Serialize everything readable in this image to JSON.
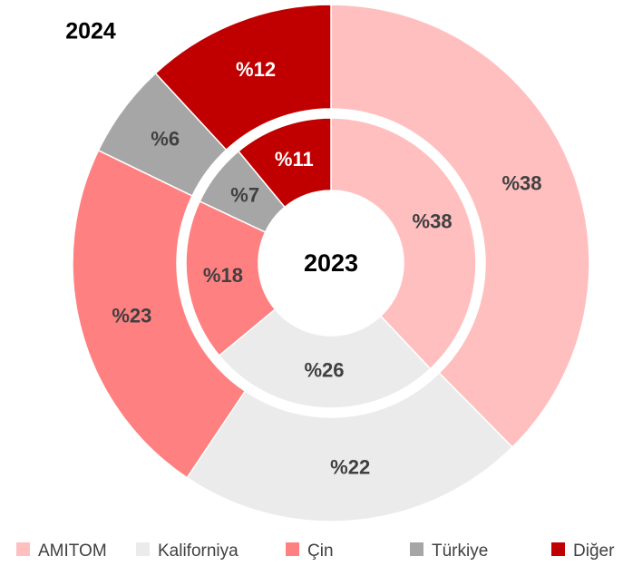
{
  "chart_data": {
    "type": "donut",
    "categories": [
      "AMITOM",
      "Kaliforniya",
      "Çin",
      "Türkiye",
      "Diğer"
    ],
    "colors": [
      "#ffbfbf",
      "#ebebeb",
      "#ff8080",
      "#a6a6a6",
      "#c00000"
    ],
    "series": [
      {
        "name": "2024",
        "values": [
          38,
          22,
          23,
          6,
          12
        ],
        "value_labels": [
          "%38",
          "%22",
          "%23",
          "%6",
          "%12"
        ]
      },
      {
        "name": "2023",
        "values": [
          38,
          26,
          18,
          7,
          11
        ],
        "value_labels": [
          "%38",
          "%26",
          "%18",
          "%7",
          "%11"
        ]
      }
    ],
    "legend": "bottom"
  }
}
